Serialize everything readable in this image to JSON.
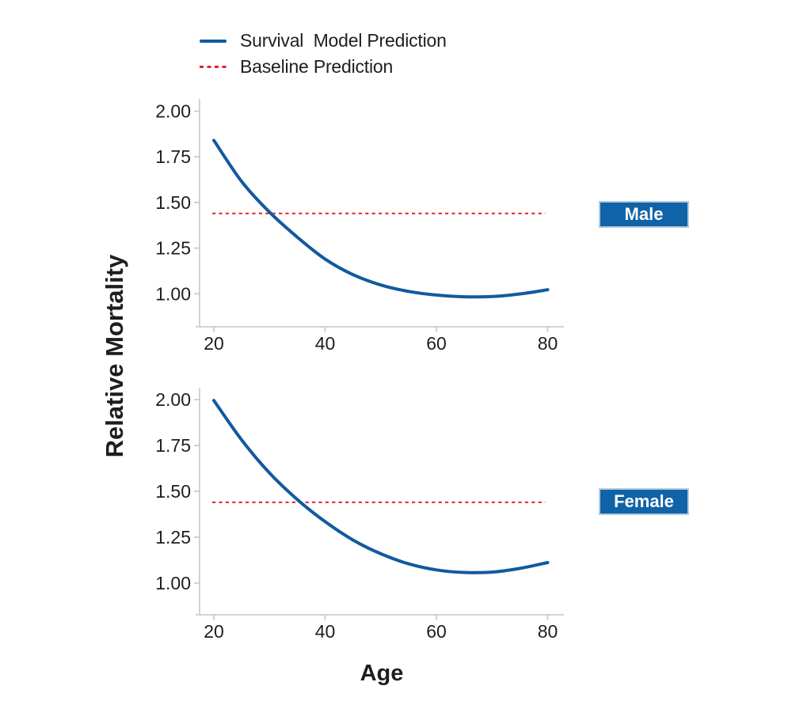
{
  "legend": {
    "items": [
      {
        "label": "Survival  Model Prediction",
        "style": "solid"
      },
      {
        "label": "Baseline Prediction",
        "style": "dashed"
      }
    ]
  },
  "axes": {
    "x_label": "Age",
    "y_label": "Relative Mortality"
  },
  "colors": {
    "survival_line": "#1259a0",
    "baseline_line": "#e8202a",
    "axis": "#c6c6c6",
    "badge_bg": "#0f63a6",
    "badge_text": "#ffffff",
    "text": "#1e1e1e"
  },
  "chart_data": [
    {
      "type": "line",
      "panel_label": "Male",
      "xlabel": "Age",
      "ylabel": "Relative Mortality",
      "x": [
        20,
        25,
        30,
        35,
        40,
        45,
        50,
        55,
        60,
        65,
        70,
        75,
        80
      ],
      "series": [
        {
          "name": "Survival Model Prediction",
          "style": "solid",
          "values": [
            1.84,
            1.615,
            1.447,
            1.31,
            1.19,
            1.105,
            1.048,
            1.013,
            0.993,
            0.9835,
            0.985,
            0.999,
            1.022
          ]
        },
        {
          "name": "Baseline Prediction",
          "style": "dashed",
          "value": 1.44,
          "x_range": [
            20,
            80
          ]
        }
      ],
      "x_ticks": [
        20,
        40,
        60,
        80
      ],
      "y_ticks": [
        "2.00",
        "1.75",
        "1.50",
        "1.25",
        "1.00"
      ],
      "xlim": [
        17.5,
        83
      ],
      "ylim": [
        0.82,
        2.07
      ],
      "grid": false
    },
    {
      "type": "line",
      "panel_label": "Female",
      "xlabel": "Age",
      "ylabel": "Relative Mortality",
      "x": [
        20,
        25,
        30,
        35,
        40,
        45,
        50,
        55,
        60,
        65,
        70,
        75,
        80
      ],
      "series": [
        {
          "name": "Survival Model Prediction",
          "style": "solid",
          "values": [
            1.995,
            1.78,
            1.6,
            1.455,
            1.335,
            1.235,
            1.16,
            1.105,
            1.072,
            1.058,
            1.06,
            1.08,
            1.112
          ]
        },
        {
          "name": "Baseline Prediction",
          "style": "dashed",
          "value": 1.44,
          "x_range": [
            20,
            80
          ]
        }
      ],
      "x_ticks": [
        20,
        40,
        60,
        80
      ],
      "y_ticks": [
        "2.00",
        "1.75",
        "1.50",
        "1.25",
        "1.00"
      ],
      "xlim": [
        17.5,
        83
      ],
      "ylim": [
        0.82,
        2.07
      ],
      "grid": false
    }
  ]
}
